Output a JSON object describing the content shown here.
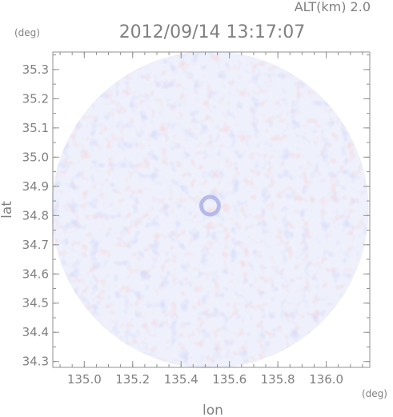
{
  "chart_data": {
    "type": "heatmap",
    "title": "2012/09/14 13:17:07",
    "subtitle": "ALT(km) 2.0",
    "xlabel": "lon",
    "ylabel": "lat",
    "x_unit": "(deg)",
    "y_unit": "(deg)",
    "xlim": [
      134.87,
      136.18
    ],
    "ylim": [
      34.28,
      35.36
    ],
    "x_ticks": [
      135.0,
      135.2,
      135.4,
      135.6,
      135.8,
      136.0
    ],
    "x_tick_labels": [
      "135.0",
      "135.2",
      "135.4",
      "135.6",
      "135.8",
      "136.0"
    ],
    "y_ticks": [
      34.3,
      34.4,
      34.5,
      34.6,
      34.7,
      34.8,
      34.9,
      35.0,
      35.1,
      35.2,
      35.3
    ],
    "y_tick_labels": [
      "34.3",
      "34.4",
      "34.5",
      "34.6",
      "34.7",
      "34.8",
      "34.9",
      "35.0",
      "35.1",
      "35.2",
      "35.3"
    ],
    "grid": false,
    "domain_center": [
      135.52,
      34.82
    ],
    "domain_radius_deg_lon": 0.655,
    "colors": {
      "negative": "#9fa6f0",
      "near_zero": "#eef0fb",
      "positive": "#f4a6a6",
      "axis": "#909090"
    }
  }
}
